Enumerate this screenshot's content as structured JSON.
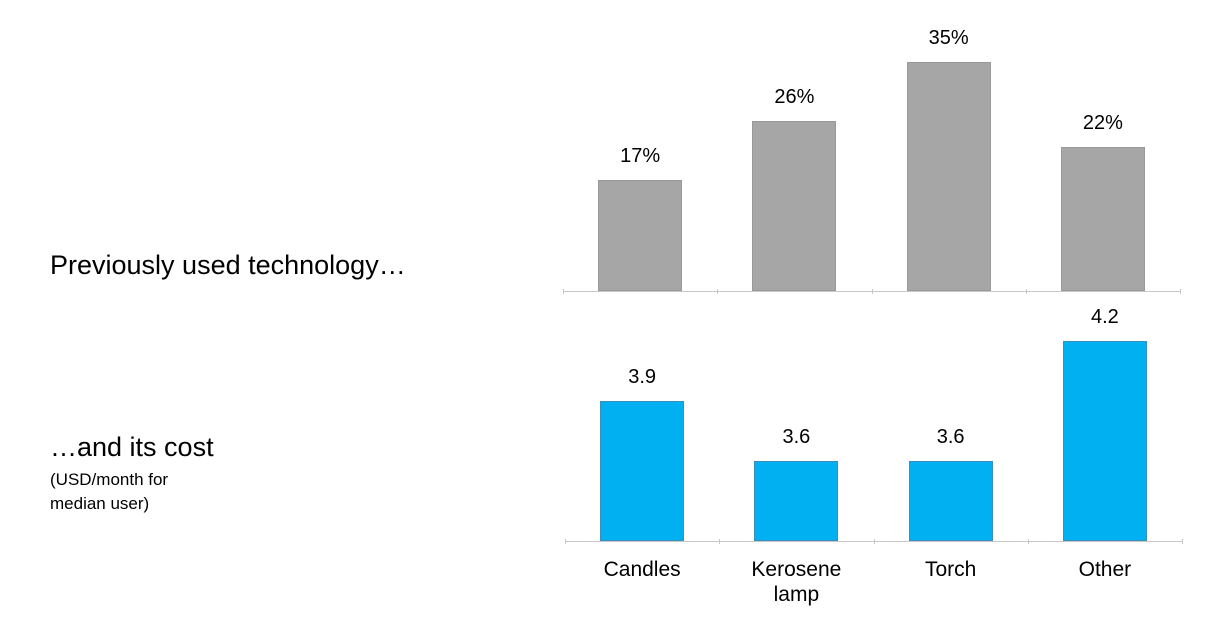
{
  "chart_data": [
    {
      "type": "bar",
      "title": "Previously used technology…",
      "values": [
        17,
        26,
        35,
        22
      ],
      "value_labels": [
        "17%",
        "26%",
        "35%",
        "22%"
      ],
      "color": "#a6a6a6",
      "ylim": [
        0,
        40
      ]
    },
    {
      "type": "bar",
      "title": "…and its cost",
      "subtitle": "(USD/month for median user)",
      "categories": [
        "Candles",
        "Kerosene lamp",
        "Torch",
        "Other"
      ],
      "values": [
        3.9,
        3.6,
        3.6,
        4.2
      ],
      "color": "#00b0f0",
      "ylim": [
        3.2,
        4.4
      ]
    }
  ]
}
